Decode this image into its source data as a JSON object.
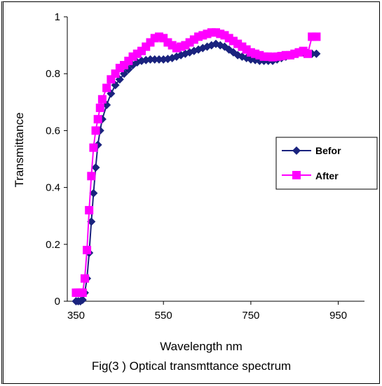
{
  "chart_data": {
    "type": "line",
    "title": "Fig(3 ) Optical transmttance spectrum",
    "xlabel": "Wavelength  nm",
    "ylabel": "Transmittance",
    "xlim": [
      330,
      1010
    ],
    "ylim": [
      0,
      1
    ],
    "xticks": [
      350,
      550,
      750,
      950
    ],
    "xtick_labels": [
      "350",
      "550",
      "750",
      "950"
    ],
    "yticks": [
      0,
      0.2,
      0.4,
      0.6,
      0.8,
      1
    ],
    "ytick_labels": [
      "0",
      "0.2",
      "0.4",
      "0.6",
      "0.8",
      "1"
    ],
    "grid": false,
    "legend_position": "right",
    "series": [
      {
        "name": "Befor",
        "color": "#1a237e",
        "marker": "diamond",
        "x": [
          350,
          355,
          360,
          365,
          370,
          375,
          380,
          385,
          390,
          395,
          400,
          405,
          410,
          420,
          430,
          440,
          450,
          460,
          470,
          480,
          490,
          500,
          510,
          520,
          530,
          540,
          550,
          560,
          570,
          580,
          590,
          600,
          610,
          620,
          630,
          640,
          650,
          660,
          670,
          680,
          690,
          700,
          710,
          720,
          730,
          740,
          750,
          760,
          770,
          780,
          790,
          800,
          810,
          820,
          830,
          840,
          850,
          860,
          870,
          880,
          890,
          900
        ],
        "y": [
          0.0,
          0.0,
          0.0,
          0.005,
          0.03,
          0.08,
          0.17,
          0.28,
          0.38,
          0.47,
          0.55,
          0.6,
          0.64,
          0.69,
          0.73,
          0.76,
          0.78,
          0.8,
          0.815,
          0.83,
          0.84,
          0.845,
          0.848,
          0.85,
          0.85,
          0.85,
          0.85,
          0.852,
          0.855,
          0.86,
          0.865,
          0.87,
          0.875,
          0.88,
          0.885,
          0.89,
          0.895,
          0.9,
          0.905,
          0.9,
          0.895,
          0.885,
          0.875,
          0.865,
          0.86,
          0.855,
          0.85,
          0.848,
          0.845,
          0.845,
          0.845,
          0.845,
          0.85,
          0.855,
          0.86,
          0.865,
          0.87,
          0.875,
          0.875,
          0.872,
          0.87,
          0.87
        ]
      },
      {
        "name": "After",
        "color": "#ff00ff",
        "marker": "square",
        "x": [
          350,
          355,
          360,
          365,
          370,
          375,
          380,
          385,
          390,
          395,
          400,
          405,
          410,
          420,
          430,
          440,
          450,
          460,
          470,
          480,
          490,
          500,
          510,
          520,
          530,
          540,
          550,
          560,
          570,
          580,
          590,
          600,
          610,
          620,
          630,
          640,
          650,
          660,
          670,
          680,
          690,
          700,
          710,
          720,
          730,
          740,
          750,
          760,
          770,
          780,
          790,
          800,
          810,
          820,
          830,
          840,
          850,
          860,
          870,
          880,
          890,
          900
        ],
        "y": [
          0.03,
          0.03,
          0.03,
          0.03,
          0.08,
          0.18,
          0.32,
          0.44,
          0.54,
          0.6,
          0.64,
          0.68,
          0.71,
          0.75,
          0.78,
          0.8,
          0.82,
          0.83,
          0.845,
          0.86,
          0.87,
          0.88,
          0.895,
          0.91,
          0.925,
          0.93,
          0.925,
          0.91,
          0.9,
          0.89,
          0.895,
          0.9,
          0.91,
          0.92,
          0.93,
          0.935,
          0.94,
          0.945,
          0.945,
          0.94,
          0.935,
          0.925,
          0.915,
          0.905,
          0.895,
          0.885,
          0.875,
          0.87,
          0.865,
          0.86,
          0.86,
          0.858,
          0.86,
          0.862,
          0.865,
          0.865,
          0.87,
          0.875,
          0.88,
          0.87,
          0.93,
          0.93
        ]
      }
    ]
  }
}
